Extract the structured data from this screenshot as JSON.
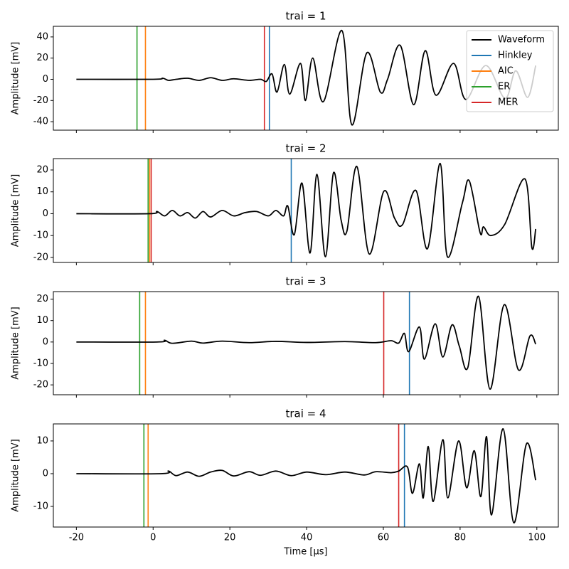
{
  "chart_data": [
    {
      "type": "line",
      "title": "trai = 1",
      "ylabel": "Amplitude [mV]",
      "xlim": [
        -26,
        105.6
      ],
      "ylim": [
        -48,
        50
      ],
      "yticks": [
        -40,
        -20,
        0,
        20,
        40
      ],
      "legend": "upper right",
      "series": [
        {
          "name": "Waveform",
          "color": "#000000",
          "x": [
            -20,
            0,
            2.5,
            4,
            6,
            9,
            12,
            15,
            18,
            21,
            25,
            28,
            29.5,
            31,
            32.3,
            34.2,
            35.6,
            38.4,
            39.7,
            41.6,
            44.4,
            49.2,
            51.8,
            55.7,
            59.2,
            61.1,
            64.4,
            67.9,
            70.9,
            73.7,
            78.3,
            81.5,
            86.7,
            91.7,
            94.5,
            97.6,
            99.7
          ],
          "values": [
            0,
            0,
            1,
            -1,
            0,
            1,
            -1,
            1.5,
            -1,
            0.5,
            -1,
            0,
            -2,
            5,
            -12,
            14,
            -14,
            15,
            -20,
            20,
            -21,
            46,
            -43,
            25,
            -12,
            0,
            32,
            -24,
            27,
            -15,
            15,
            -19,
            13,
            -18,
            8,
            -17,
            13
          ]
        }
      ],
      "vlines": [
        {
          "name": "Hinkley",
          "color": "#1f77b4",
          "x": 30.3
        },
        {
          "name": "AIC",
          "color": "#ff7f0e",
          "x": -2.0
        },
        {
          "name": "ER",
          "color": "#2ca02c",
          "x": -4.2
        },
        {
          "name": "MER",
          "color": "#d62728",
          "x": 29.0
        }
      ]
    },
    {
      "type": "line",
      "title": "trai = 2",
      "ylabel": "Amplitude [mV]",
      "xlim": [
        -26,
        105.6
      ],
      "ylim": [
        -22.3,
        25.2
      ],
      "yticks": [
        -20,
        -10,
        0,
        10,
        20
      ],
      "series": [
        {
          "color": "#000000",
          "x": [
            -20,
            -1,
            1,
            3,
            5,
            7,
            9,
            11,
            13,
            15,
            18,
            21,
            24,
            27,
            30,
            32,
            34,
            35.1,
            36.8,
            38.8,
            40.9,
            42.7,
            44.9,
            47.0,
            49.0,
            50.5,
            53.1,
            56.3,
            60.1,
            62.9,
            65.0,
            68.5,
            71.5,
            74.8,
            76.7,
            80.6,
            82.4,
            85.2,
            86.1,
            88.0,
            91.6,
            96.9,
            98.7,
            99.7
          ],
          "values": [
            0,
            0,
            1,
            -1,
            1.5,
            -1,
            0.5,
            -2,
            1,
            -1.5,
            1.5,
            -1,
            0.5,
            1,
            -1,
            1.5,
            -1,
            3.5,
            -9.6,
            14,
            -18,
            18,
            -19.7,
            18.7,
            -3,
            -8,
            21.6,
            -18.4,
            10.2,
            -2,
            -5,
            10.6,
            -16,
            23,
            -19.7,
            5,
            15,
            -8.6,
            -6,
            -10,
            -5,
            15.9,
            -15.5,
            -7
          ]
        }
      ],
      "vlines": [
        {
          "color": "#1f77b4",
          "x": 36.0
        },
        {
          "color": "#ff7f0e",
          "x": -0.9
        },
        {
          "color": "#2ca02c",
          "x": -1.3
        },
        {
          "color": "#d62728",
          "x": -0.5
        }
      ]
    },
    {
      "type": "line",
      "title": "trai = 3",
      "ylabel": "Amplitude [mV]",
      "xlim": [
        -26,
        105.6
      ],
      "ylim": [
        -24.6,
        23.5
      ],
      "yticks": [
        -20,
        -10,
        0,
        10,
        20
      ],
      "series": [
        {
          "color": "#000000",
          "x": [
            -20,
            1,
            3,
            5,
            10,
            13,
            18,
            25,
            32,
            40,
            50,
            58,
            62,
            64,
            65.5,
            66.6,
            69.4,
            70.7,
            73.5,
            75.5,
            77.9,
            79.8,
            82.0,
            84.8,
            87.8,
            91.5,
            95.2,
            98.2,
            99.7
          ],
          "values": [
            0,
            0,
            0.8,
            -0.6,
            0.4,
            -0.5,
            0.4,
            -0.3,
            0.3,
            -0.2,
            0.2,
            -0.3,
            0.6,
            -0.5,
            4,
            -4.5,
            7,
            -8,
            8.5,
            -7,
            8,
            -2,
            -12,
            21.3,
            -22,
            17.4,
            -13,
            2.8,
            -1
          ]
        }
      ],
      "vlines": [
        {
          "color": "#1f77b4",
          "x": 66.8
        },
        {
          "color": "#ff7f0e",
          "x": -2.0
        },
        {
          "color": "#2ca02c",
          "x": -3.5
        },
        {
          "color": "#d62728",
          "x": 60.1
        }
      ]
    },
    {
      "type": "line",
      "title": "trai = 4",
      "ylabel": "Amplitude [mV]",
      "xlabel": "Time [µs]",
      "xlim": [
        -26,
        105.6
      ],
      "xticks": [
        -20,
        0,
        20,
        40,
        60,
        80,
        100
      ],
      "ylim": [
        -16.3,
        15.2
      ],
      "yticks": [
        -10,
        0,
        10
      ],
      "series": [
        {
          "color": "#000000",
          "x": [
            -20,
            2,
            4,
            6,
            9,
            12,
            15,
            18,
            21,
            25,
            28,
            32,
            36,
            40,
            45,
            50,
            55,
            58,
            62,
            64,
            66.3,
            67.6,
            69.4,
            70.4,
            71.7,
            73.0,
            75.5,
            76.8,
            79.6,
            81.7,
            83.7,
            85.4,
            86.9,
            88.2,
            91.2,
            94.0,
            97.3,
            99.7
          ],
          "values": [
            0,
            0,
            0.8,
            -0.6,
            0.5,
            -0.8,
            0.5,
            1,
            -0.7,
            0.6,
            -0.5,
            0.8,
            -0.6,
            0.5,
            -0.3,
            0.5,
            -0.4,
            0.6,
            0.3,
            0.8,
            2,
            -6,
            3,
            -7.4,
            8.3,
            -8.5,
            10.4,
            -7.4,
            10,
            -4.3,
            7,
            -7,
            11.3,
            -12.6,
            13.7,
            -15,
            9.1,
            -2
          ]
        }
      ],
      "vlines": [
        {
          "color": "#1f77b4",
          "x": 65.5
        },
        {
          "color": "#ff7f0e",
          "x": -1.3
        },
        {
          "color": "#2ca02c",
          "x": -2.4
        },
        {
          "color": "#d62728",
          "x": 64.0
        }
      ]
    }
  ]
}
